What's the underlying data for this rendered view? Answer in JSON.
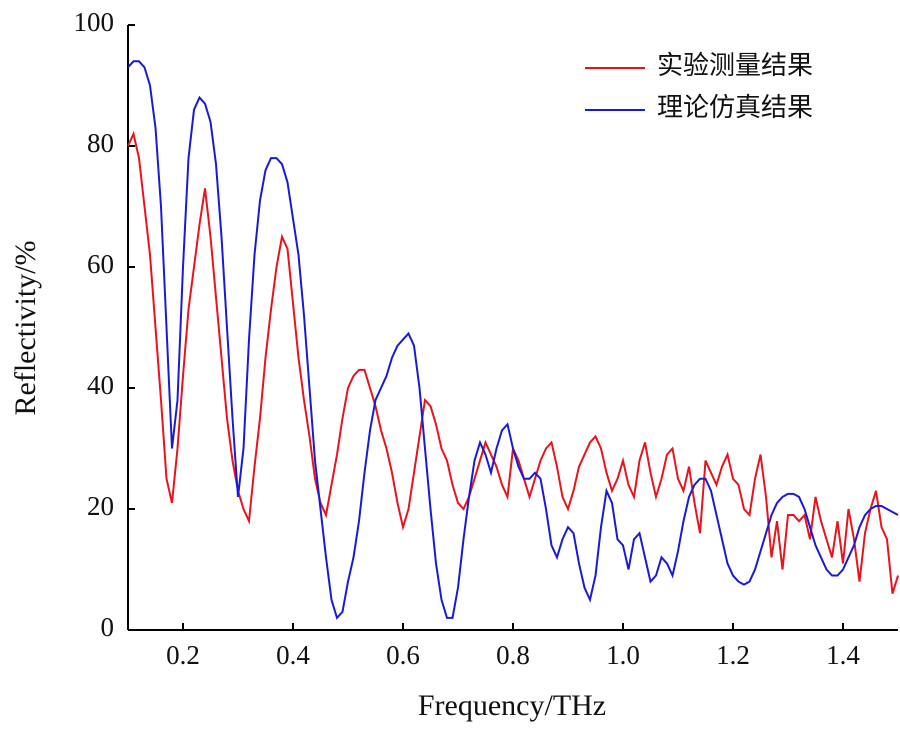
{
  "chart_data": {
    "type": "line",
    "x_label": "Frequency/THz",
    "y_label": "Reflectivity/%",
    "legend_position": "upper right",
    "x": [
      0.1,
      0.11,
      0.12,
      0.13,
      0.14,
      0.15,
      0.16,
      0.17,
      0.18,
      0.19,
      0.2,
      0.21,
      0.22,
      0.23,
      0.24,
      0.25,
      0.26,
      0.27,
      0.28,
      0.29,
      0.3,
      0.31,
      0.32,
      0.33,
      0.34,
      0.35,
      0.36,
      0.37,
      0.38,
      0.39,
      0.4,
      0.41,
      0.42,
      0.43,
      0.44,
      0.45,
      0.46,
      0.47,
      0.48,
      0.49,
      0.5,
      0.51,
      0.52,
      0.53,
      0.54,
      0.55,
      0.56,
      0.57,
      0.58,
      0.59,
      0.6,
      0.61,
      0.62,
      0.63,
      0.64,
      0.65,
      0.66,
      0.67,
      0.68,
      0.69,
      0.7,
      0.71,
      0.72,
      0.73,
      0.74,
      0.75,
      0.76,
      0.77,
      0.78,
      0.79,
      0.8,
      0.81,
      0.82,
      0.83,
      0.84,
      0.85,
      0.86,
      0.87,
      0.88,
      0.89,
      0.9,
      0.91,
      0.92,
      0.93,
      0.94,
      0.95,
      0.96,
      0.97,
      0.98,
      0.99,
      1.0,
      1.01,
      1.02,
      1.03,
      1.04,
      1.05,
      1.06,
      1.07,
      1.08,
      1.09,
      1.1,
      1.11,
      1.12,
      1.13,
      1.14,
      1.15,
      1.16,
      1.17,
      1.18,
      1.19,
      1.2,
      1.21,
      1.22,
      1.23,
      1.24,
      1.25,
      1.26,
      1.27,
      1.28,
      1.29,
      1.3,
      1.31,
      1.32,
      1.33,
      1.34,
      1.35,
      1.36,
      1.37,
      1.38,
      1.39,
      1.4,
      1.41,
      1.42,
      1.43,
      1.44,
      1.45,
      1.46,
      1.47,
      1.48,
      1.49,
      1.5
    ],
    "series": [
      {
        "name": "实验测量结果",
        "color": "#e8141c",
        "values": [
          80,
          82,
          78,
          70,
          62,
          50,
          38,
          25,
          21,
          30,
          42,
          53,
          60,
          67,
          73,
          65,
          55,
          45,
          35,
          28,
          23,
          20,
          18,
          27,
          35,
          45,
          53,
          60,
          65,
          63,
          54,
          45,
          38,
          32,
          25,
          21,
          19,
          24,
          29,
          35,
          40,
          42,
          43,
          43,
          40,
          37,
          33,
          30,
          26,
          21,
          17,
          20,
          26,
          32,
          38,
          37,
          34,
          30,
          28,
          24,
          21,
          20,
          22,
          25,
          28,
          31,
          29,
          27,
          24,
          22,
          30,
          28,
          25,
          22,
          25,
          28,
          30,
          31,
          27,
          22,
          20,
          23,
          27,
          29,
          31,
          32,
          30,
          26,
          23,
          25,
          28,
          24,
          22,
          28,
          31,
          26,
          22,
          25,
          29,
          30,
          25,
          23,
          27,
          21,
          16,
          28,
          26,
          24,
          27,
          29,
          25,
          24,
          20,
          19,
          25,
          29,
          22,
          12,
          18,
          10,
          19,
          19,
          18,
          19,
          15,
          22,
          18,
          15,
          12,
          18,
          11,
          20,
          15,
          8,
          16,
          20,
          23,
          17,
          15,
          6,
          9
        ]
      },
      {
        "name": "理论仿真结果",
        "color": "#1a1ad6",
        "values": [
          93,
          94,
          94,
          93,
          90,
          83,
          70,
          50,
          30,
          38,
          60,
          78,
          86,
          88,
          87,
          84,
          77,
          65,
          50,
          35,
          22,
          30,
          48,
          62,
          71,
          76,
          78,
          78,
          77,
          74,
          68,
          62,
          52,
          40,
          28,
          20,
          12,
          5,
          2,
          3,
          8,
          12,
          18,
          26,
          33,
          38,
          40,
          42,
          45,
          47,
          48,
          49,
          47,
          40,
          30,
          20,
          11,
          5,
          2,
          2,
          7,
          15,
          22,
          28,
          31,
          29,
          26,
          30,
          33,
          34,
          30,
          27,
          25,
          25,
          26,
          25,
          20,
          14,
          12,
          15,
          17,
          16,
          11,
          7,
          5,
          9,
          17,
          23,
          21,
          15,
          14,
          10,
          15,
          16,
          12,
          8,
          9,
          12,
          11,
          9,
          13,
          18,
          22,
          24,
          25,
          25,
          23,
          19,
          15,
          11,
          9,
          8,
          7.5,
          8,
          10,
          13,
          16,
          19,
          21,
          22,
          22.5,
          22.5,
          22,
          20,
          17,
          14,
          12,
          10,
          9,
          9,
          10,
          12,
          14,
          17,
          19,
          20,
          20.5,
          20.5,
          20,
          19.5,
          19
        ]
      }
    ],
    "xlim": [
      0.1,
      1.5
    ],
    "ylim": [
      0,
      100
    ],
    "xticks": [
      0.2,
      0.4,
      0.6,
      0.8,
      {
        "value": 1,
        "label": "1.0"
      },
      1.2,
      1.4
    ],
    "yticks": [
      0,
      20,
      40,
      60,
      80,
      100
    ]
  }
}
